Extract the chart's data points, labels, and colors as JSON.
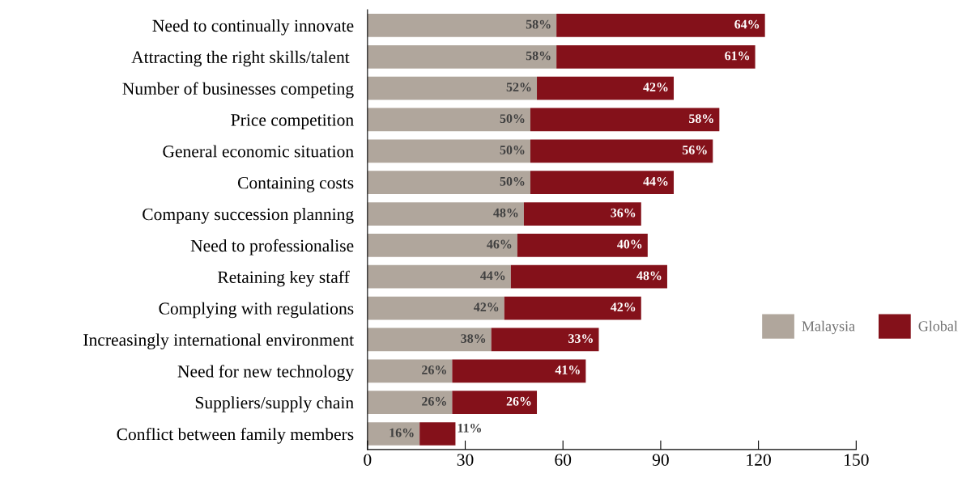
{
  "chart_data": {
    "type": "bar",
    "orientation": "horizontal",
    "stacked": true,
    "categories": [
      "Need to continually innovate",
      "Attracting the right skills/talent ",
      "Number of businesses competing",
      "Price competition",
      "General economic situation",
      "Containing costs",
      "Company succession planning",
      "Need to professionalise",
      "Retaining key staff ",
      "Complying with regulations",
      "Increasingly international environment",
      "Need for new technology",
      "Suppliers/supply chain",
      "Conflict between family members"
    ],
    "series": [
      {
        "name": "Malaysia",
        "color": "#b0a69c",
        "values": [
          58,
          58,
          52,
          50,
          50,
          50,
          48,
          46,
          44,
          42,
          38,
          26,
          26,
          16
        ],
        "value_labels": [
          "58%",
          "58%",
          "52%",
          "50%",
          "50%",
          "50%",
          "48%",
          "46%",
          "44%",
          "42%",
          "38%",
          "26%",
          "26%",
          "16%"
        ]
      },
      {
        "name": "Global",
        "color": "#84111a",
        "values": [
          64,
          61,
          42,
          58,
          56,
          44,
          36,
          40,
          48,
          42,
          33,
          41,
          26,
          11
        ],
        "value_labels": [
          "64%",
          "61%",
          "42%",
          "58%",
          "56%",
          "44%",
          "36%",
          "40%",
          "48%",
          "42%",
          "33%",
          "41%",
          "26%",
          "11%"
        ]
      }
    ],
    "xlim": [
      0,
      150
    ],
    "xticks": [
      0,
      30,
      60,
      90,
      120,
      150
    ],
    "grid": false,
    "legend": "center right"
  }
}
